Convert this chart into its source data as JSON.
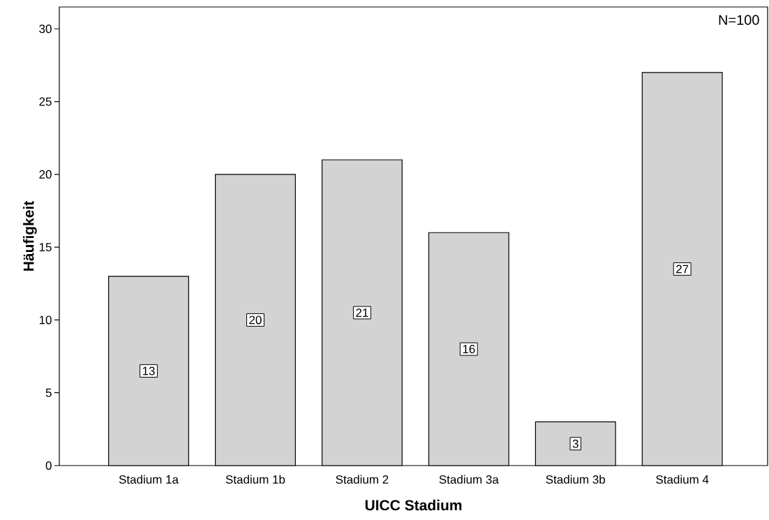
{
  "chart_data": {
    "type": "bar",
    "xlabel": "UICC Stadium",
    "ylabel": "Häufigkeit",
    "categories": [
      "Stadium 1a",
      "Stadium 1b",
      "Stadium 2",
      "Stadium 3a",
      "Stadium 3b",
      "Stadium 4"
    ],
    "values": [
      13,
      20,
      21,
      16,
      3,
      27
    ],
    "color": "#d3d3d3",
    "ylim": [
      0,
      31.5
    ],
    "yticks": [
      0,
      5,
      10,
      15,
      20,
      25,
      30
    ],
    "data_labels": true,
    "grid": false,
    "annotations": [
      "N=100"
    ]
  }
}
